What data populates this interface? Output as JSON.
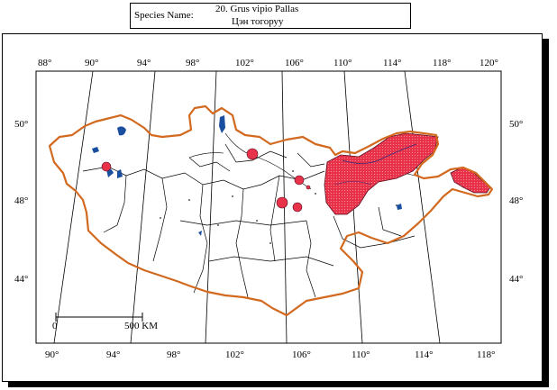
{
  "species": {
    "label": "Species Name:",
    "latin": "20.  Grus vipio  Pallas",
    "local": "Цэн тогоруу"
  },
  "map": {
    "top_lon_labels": [
      "88°",
      "90°",
      "94°",
      "98°",
      "102°",
      "106°",
      "110°",
      "114°",
      "118°",
      "120°"
    ],
    "bottom_lon_labels": [
      "90°",
      "94°",
      "98°",
      "102°",
      "106°",
      "110°",
      "114°",
      "118°"
    ],
    "left_lat_labels": [
      "50°",
      "48°",
      "44°"
    ],
    "right_lat_labels": [
      "50°",
      "48°",
      "48°",
      "44°"
    ],
    "scale_start": "0",
    "scale_end": "500 KM",
    "colors": {
      "border": "#d2691e",
      "range_fill": "#e8324a",
      "range_hatch": "#3a2a7a",
      "lakes": "#1a4fa0",
      "internal_boundaries": "#000000"
    },
    "legend_note": "Distribution range shown as red shaded area; point records as red circles"
  }
}
